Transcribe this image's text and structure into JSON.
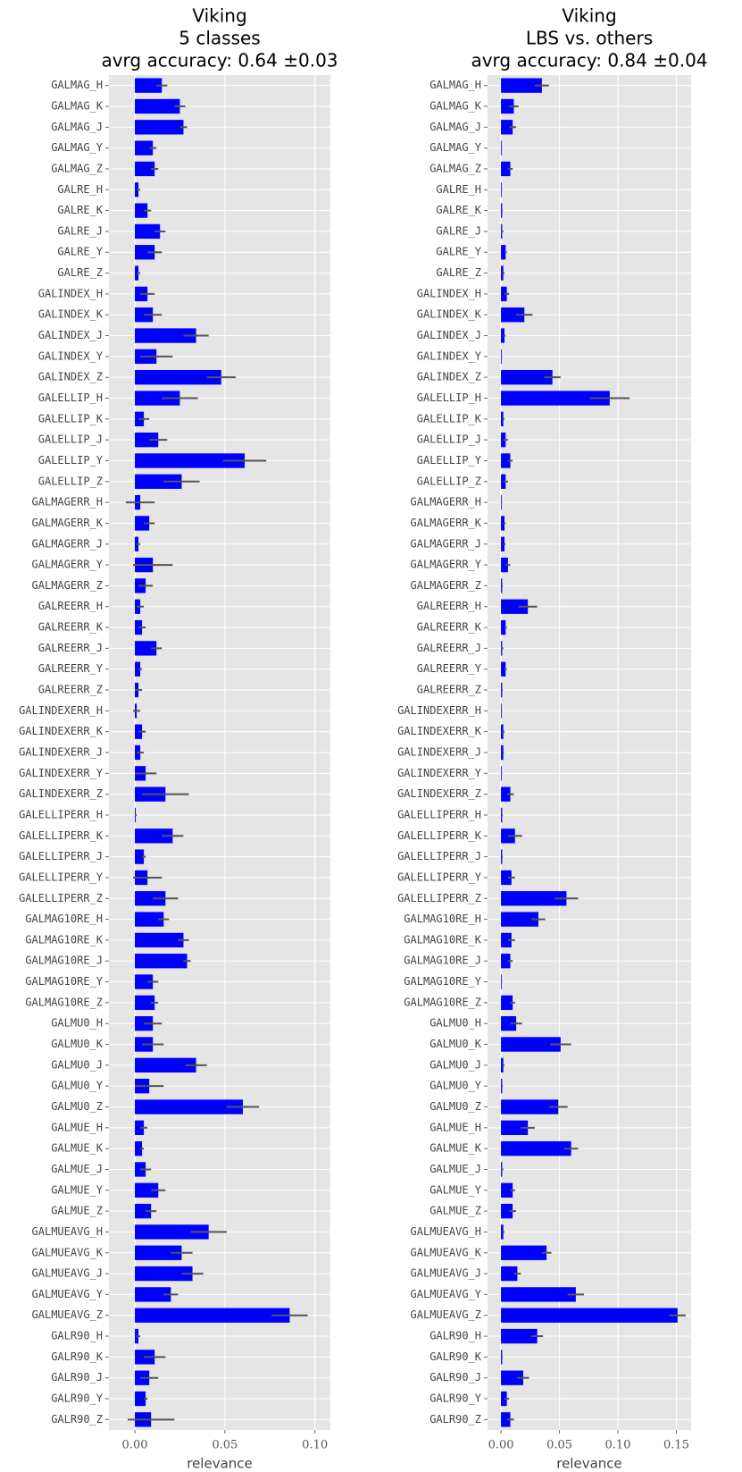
{
  "chart_data": [
    {
      "type": "bar",
      "horizontal": true,
      "title": [
        "Viking",
        "5 classes",
        "avrg accuracy: 0.64 ±0.03"
      ],
      "xlabel": "relevance",
      "color": "#0000ff",
      "error_color": "#555555",
      "xlim": [
        -0.0144,
        0.1086
      ],
      "xticks": [
        {
          "value": 0,
          "label": "0.00"
        },
        {
          "value": 0.05,
          "label": "0.05"
        },
        {
          "value": 0.1,
          "label": "0.10"
        }
      ],
      "grid": true,
      "categories": [
        "GALMAG_H",
        "GALMAG_K",
        "GALMAG_J",
        "GALMAG_Y",
        "GALMAG_Z",
        "GALRE_H",
        "GALRE_K",
        "GALRE_J",
        "GALRE_Y",
        "GALRE_Z",
        "GALINDEX_H",
        "GALINDEX_K",
        "GALINDEX_J",
        "GALINDEX_Y",
        "GALINDEX_Z",
        "GALELLIP_H",
        "GALELLIP_K",
        "GALELLIP_J",
        "GALELLIP_Y",
        "GALELLIP_Z",
        "GALMAGERR_H",
        "GALMAGERR_K",
        "GALMAGERR_J",
        "GALMAGERR_Y",
        "GALMAGERR_Z",
        "GALREERR_H",
        "GALREERR_K",
        "GALREERR_J",
        "GALREERR_Y",
        "GALREERR_Z",
        "GALINDEXERR_H",
        "GALINDEXERR_K",
        "GALINDEXERR_J",
        "GALINDEXERR_Y",
        "GALINDEXERR_Z",
        "GALELLIPERR_H",
        "GALELLIPERR_K",
        "GALELLIPERR_J",
        "GALELLIPERR_Y",
        "GALELLIPERR_Z",
        "GALMAG10RE_H",
        "GALMAG10RE_K",
        "GALMAG10RE_J",
        "GALMAG10RE_Y",
        "GALMAG10RE_Z",
        "GALMU0_H",
        "GALMU0_K",
        "GALMU0_J",
        "GALMU0_Y",
        "GALMU0_Z",
        "GALMUE_H",
        "GALMUE_K",
        "GALMUE_J",
        "GALMUE_Y",
        "GALMUE_Z",
        "GALMUEAVG_H",
        "GALMUEAVG_K",
        "GALMUEAVG_J",
        "GALMUEAVG_Y",
        "GALMUEAVG_Z",
        "GALR90_H",
        "GALR90_K",
        "GALR90_J",
        "GALR90_Y",
        "GALR90_Z"
      ],
      "values": [
        0.015,
        0.025,
        0.027,
        0.01,
        0.011,
        0.002,
        0.007,
        0.014,
        0.011,
        0.002,
        0.007,
        0.01,
        0.034,
        0.012,
        0.048,
        0.025,
        0.005,
        0.013,
        0.061,
        0.026,
        0.003,
        0.008,
        0.002,
        0.01,
        0.006,
        0.003,
        0.004,
        0.012,
        0.003,
        0.002,
        0.001,
        0.004,
        0.003,
        0.006,
        0.017,
        0.0005,
        0.021,
        0.005,
        0.007,
        0.017,
        0.016,
        0.027,
        0.029,
        0.01,
        0.011,
        0.01,
        0.01,
        0.034,
        0.008,
        0.06,
        0.005,
        0.004,
        0.006,
        0.013,
        0.009,
        0.041,
        0.026,
        0.032,
        0.02,
        0.086,
        0.002,
        0.011,
        0.008,
        0.006,
        0.009
      ],
      "errors": [
        0.003,
        0.003,
        0.002,
        0.002,
        0.002,
        0.001,
        0.002,
        0.003,
        0.004,
        0.001,
        0.004,
        0.005,
        0.007,
        0.009,
        0.008,
        0.01,
        0.003,
        0.005,
        0.012,
        0.01,
        0.008,
        0.003,
        0.001,
        0.011,
        0.004,
        0.002,
        0.002,
        0.003,
        0.001,
        0.002,
        0.002,
        0.002,
        0.002,
        0.006,
        0.013,
        0.0005,
        0.006,
        0.001,
        0.008,
        0.007,
        0.003,
        0.003,
        0.002,
        0.003,
        0.002,
        0.005,
        0.006,
        0.006,
        0.008,
        0.009,
        0.002,
        0.001,
        0.003,
        0.004,
        0.003,
        0.01,
        0.006,
        0.006,
        0.004,
        0.01,
        0.001,
        0.006,
        0.005,
        0.001,
        0.013
      ]
    },
    {
      "type": "bar",
      "horizontal": true,
      "title": [
        "Viking",
        "LBS vs. others",
        "avrg accuracy: 0.84 ±0.04"
      ],
      "xlabel": "relevance",
      "color": "#0000ff",
      "error_color": "#555555",
      "xlim": [
        -0.0115,
        0.1626
      ],
      "xticks": [
        {
          "value": 0,
          "label": "0.00"
        },
        {
          "value": 0.05,
          "label": "0.05"
        },
        {
          "value": 0.1,
          "label": "0.10"
        },
        {
          "value": 0.15,
          "label": "0.15"
        }
      ],
      "grid": true,
      "categories": [
        "GALMAG_H",
        "GALMAG_K",
        "GALMAG_J",
        "GALMAG_Y",
        "GALMAG_Z",
        "GALRE_H",
        "GALRE_K",
        "GALRE_J",
        "GALRE_Y",
        "GALRE_Z",
        "GALINDEX_H",
        "GALINDEX_K",
        "GALINDEX_J",
        "GALINDEX_Y",
        "GALINDEX_Z",
        "GALELLIP_H",
        "GALELLIP_K",
        "GALELLIP_J",
        "GALELLIP_Y",
        "GALELLIP_Z",
        "GALMAGERR_H",
        "GALMAGERR_K",
        "GALMAGERR_J",
        "GALMAGERR_Y",
        "GALMAGERR_Z",
        "GALREERR_H",
        "GALREERR_K",
        "GALREERR_J",
        "GALREERR_Y",
        "GALREERR_Z",
        "GALINDEXERR_H",
        "GALINDEXERR_K",
        "GALINDEXERR_J",
        "GALINDEXERR_Y",
        "GALINDEXERR_Z",
        "GALELLIPERR_H",
        "GALELLIPERR_K",
        "GALELLIPERR_J",
        "GALELLIPERR_Y",
        "GALELLIPERR_Z",
        "GALMAG10RE_H",
        "GALMAG10RE_K",
        "GALMAG10RE_J",
        "GALMAG10RE_Y",
        "GALMAG10RE_Z",
        "GALMU0_H",
        "GALMU0_K",
        "GALMU0_J",
        "GALMU0_Y",
        "GALMU0_Z",
        "GALMUE_H",
        "GALMUE_K",
        "GALMUE_J",
        "GALMUE_Y",
        "GALMUE_Z",
        "GALMUEAVG_H",
        "GALMUEAVG_K",
        "GALMUEAVG_J",
        "GALMUEAVG_Y",
        "GALMUEAVG_Z",
        "GALR90_H",
        "GALR90_K",
        "GALR90_J",
        "GALR90_Y",
        "GALR90_Z"
      ],
      "values": [
        0.035,
        0.011,
        0.01,
        0.0005,
        0.008,
        0.0005,
        0.001,
        0.001,
        0.004,
        0.002,
        0.005,
        0.02,
        0.003,
        0.0005,
        0.044,
        0.093,
        0.002,
        0.004,
        0.008,
        0.004,
        0.0005,
        0.003,
        0.003,
        0.006,
        0.001,
        0.023,
        0.004,
        0.001,
        0.004,
        0.001,
        0.0005,
        0.002,
        0.002,
        0.0005,
        0.008,
        0.001,
        0.012,
        0.001,
        0.009,
        0.056,
        0.032,
        0.009,
        0.008,
        0.0005,
        0.01,
        0.013,
        0.051,
        0.002,
        0.001,
        0.049,
        0.023,
        0.06,
        0.001,
        0.01,
        0.01,
        0.002,
        0.039,
        0.014,
        0.064,
        0.151,
        0.031,
        0.001,
        0.019,
        0.005,
        0.008
      ],
      "errors": [
        0.006,
        0.004,
        0.003,
        0.0005,
        0.002,
        0.0005,
        0.0005,
        0.001,
        0.001,
        0.001,
        0.002,
        0.007,
        0.001,
        0.0005,
        0.007,
        0.017,
        0.001,
        0.002,
        0.002,
        0.002,
        0.0005,
        0.001,
        0.001,
        0.002,
        0.0005,
        0.008,
        0.001,
        0.001,
        0.001,
        0.0005,
        0.0005,
        0.001,
        0.0005,
        0.0005,
        0.003,
        0.0005,
        0.006,
        0.0005,
        0.003,
        0.01,
        0.006,
        0.003,
        0.002,
        0.0005,
        0.002,
        0.005,
        0.009,
        0.001,
        0.0005,
        0.008,
        0.006,
        0.006,
        0.001,
        0.002,
        0.003,
        0.001,
        0.004,
        0.003,
        0.007,
        0.007,
        0.005,
        0.0005,
        0.005,
        0.002,
        0.003
      ]
    }
  ]
}
